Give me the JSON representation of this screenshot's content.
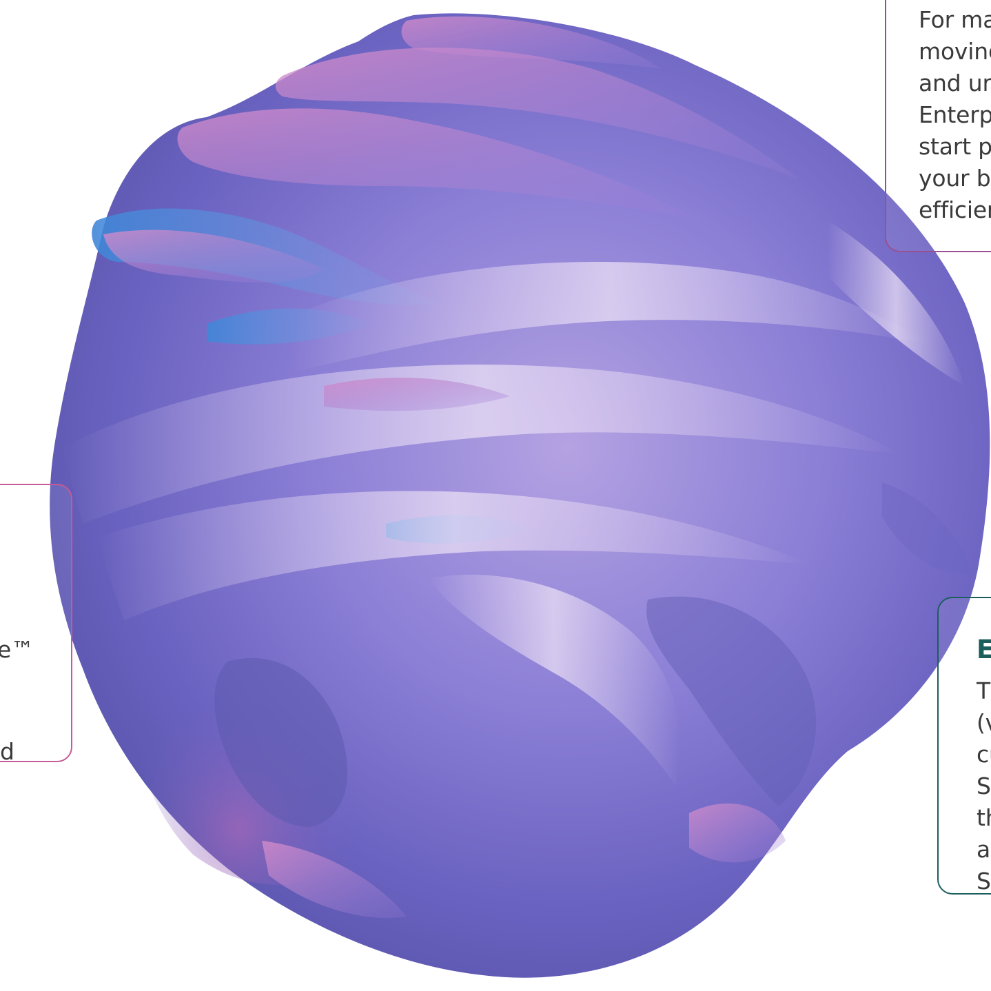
{
  "background_color": "#ffffff",
  "graphic": {
    "name": "fluid-sphere-artwork",
    "colors": [
      "#5a5fb8",
      "#7f73cf",
      "#c084c8",
      "#4a7fd0",
      "#b4a2e2"
    ]
  },
  "top_right_card": {
    "border_color": "#9b4f92",
    "lines": [
      "For ma",
      "moving",
      "and ur",
      "Enterp",
      "start p",
      "your b",
      "efficier"
    ]
  },
  "left_card": {
    "border_color": "#c45b98",
    "fragments": [
      "e™",
      "d"
    ]
  },
  "bottom_right_card": {
    "border_color": "#1b5e5c",
    "title": "E",
    "lines": [
      "Th",
      "(v",
      "cu",
      "SA",
      "th",
      "ac",
      "SA"
    ]
  }
}
